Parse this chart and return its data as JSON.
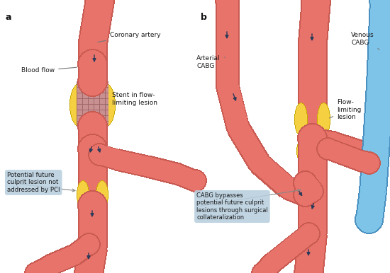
{
  "bg_color": "#ffffff",
  "artery_color": "#e8736a",
  "artery_edge": "#c85a52",
  "artery_light": "#f0a090",
  "vein_color": "#7dc4e8",
  "vein_edge": "#4a90c0",
  "lesion_color": "#f5d040",
  "lesion_edge": "#c8a800",
  "stent_fill": "#c89090",
  "stent_grid": "#a06868",
  "box_color": "#b8cede",
  "arrow_color": "#2a3a5a",
  "text_color": "#1a1a1a",
  "label_a": "a",
  "label_b": "b",
  "blood_flow": "Blood flow",
  "coronary_artery": "Coronary artery",
  "stent_label": "Stent in flow-\nlimiting lesion",
  "future_lesion": "Potential future\nculprit lesion not\naddressed by PCI",
  "arterial_cabg": "Arterial\nCABG",
  "venous_cabg": "Venous\nCABG",
  "flow_limiting": "Flow-\nlimiting\nlesion",
  "cabg_bypasses": "CABG bypasses\npotential future culprit\nlesions through surgical\ncollateralization"
}
